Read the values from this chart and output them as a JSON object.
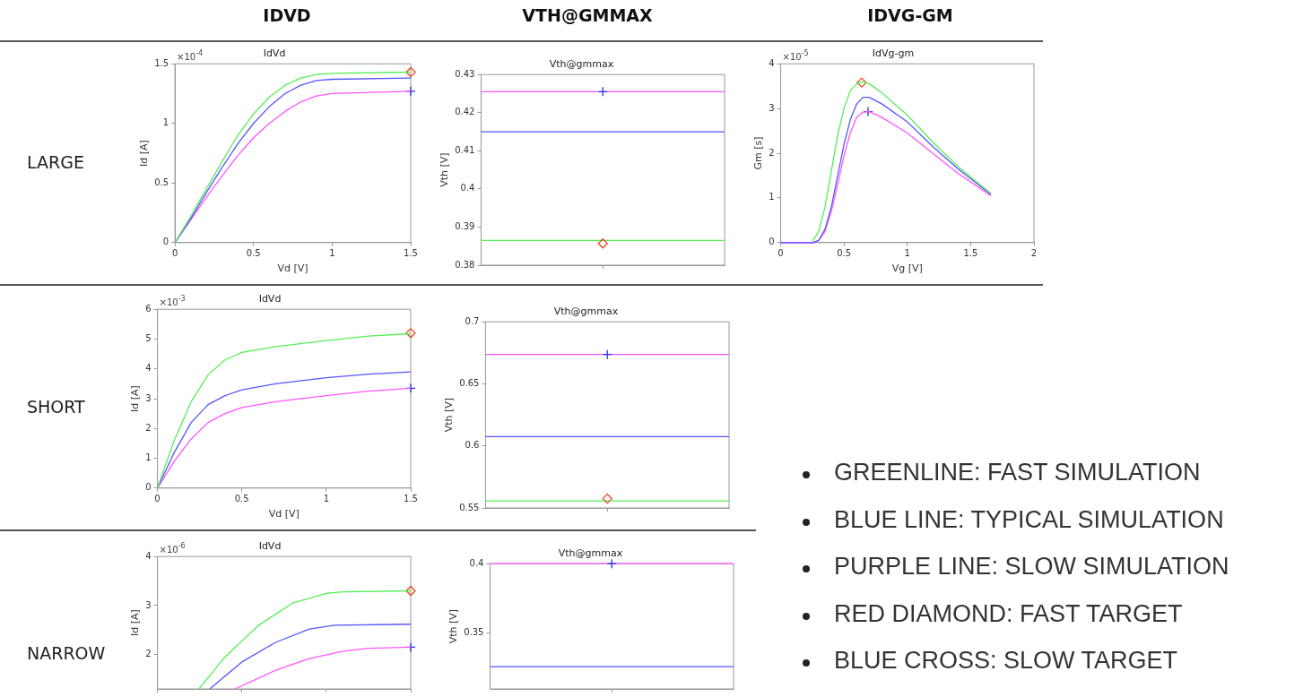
{
  "chart_data": [
    {
      "type": "line",
      "title": "IdVd",
      "xlabel": "Vd [V]",
      "ylabel": "Id [A]",
      "annotations": [
        "×10$^{-4}$"
      ],
      "xlim": [
        0,
        1.5
      ],
      "xticks": [
        0,
        0.5,
        1,
        1.5
      ],
      "ylim": [
        0,
        1.5
      ],
      "yticks": [
        0,
        0.5,
        1,
        1.5
      ],
      "series": [
        {
          "type": "line",
          "color": "#55ee55",
          "marker": "none",
          "x": [
            0,
            0.1,
            0.2,
            0.3,
            0.4,
            0.5,
            0.6,
            0.7,
            0.8,
            0.9,
            1.0,
            1.5
          ],
          "values": [
            0,
            0.22,
            0.45,
            0.68,
            0.9,
            1.08,
            1.22,
            1.32,
            1.38,
            1.41,
            1.42,
            1.43
          ]
        },
        {
          "type": "line",
          "color": "#5555ff",
          "marker": "none",
          "x": [
            0,
            0.1,
            0.2,
            0.3,
            0.4,
            0.5,
            0.6,
            0.7,
            0.8,
            0.9,
            1.0,
            1.5
          ],
          "values": [
            0,
            0.2,
            0.42,
            0.63,
            0.83,
            1.0,
            1.14,
            1.25,
            1.32,
            1.36,
            1.37,
            1.38
          ]
        },
        {
          "type": "line",
          "color": "#ff55ff",
          "marker": "none",
          "x": [
            0,
            0.1,
            0.2,
            0.3,
            0.4,
            0.5,
            0.6,
            0.7,
            0.8,
            0.9,
            1.0,
            1.5
          ],
          "values": [
            0,
            0.19,
            0.38,
            0.56,
            0.73,
            0.88,
            1.0,
            1.1,
            1.18,
            1.23,
            1.25,
            1.27
          ]
        },
        {
          "type": "scatter",
          "color": "#ee4422",
          "marker": "diamond",
          "x": [
            1.5
          ],
          "values": [
            1.43
          ]
        },
        {
          "type": "scatter",
          "color": "#2233dd",
          "marker": "cross",
          "x": [
            1.5
          ],
          "values": [
            1.27
          ]
        }
      ]
    },
    {
      "type": "line",
      "title": "Vth@gmmax",
      "ylabel": "Vth [V]",
      "tick_labels": "y",
      "categories": [
        null
      ],
      "ylim": [
        0.38,
        0.43
      ],
      "yticks": [
        0.38,
        0.39,
        0.4,
        0.41,
        0.42,
        0.43
      ],
      "ref_lines": [
        {
          "axis": "y",
          "value": 0.4255,
          "color": "#ff55ff"
        },
        {
          "axis": "y",
          "value": 0.415,
          "color": "#5555ff"
        },
        {
          "axis": "y",
          "value": 0.3865,
          "color": "#55ee55"
        }
      ],
      "series": [
        {
          "type": "scatter",
          "color": "#ee4422",
          "marker": "diamond",
          "values": [
            0.3857
          ]
        },
        {
          "type": "scatter",
          "color": "#2233dd",
          "marker": "cross",
          "values": [
            0.4255
          ]
        }
      ]
    },
    {
      "type": "line",
      "title": "IdVg-gm",
      "xlabel": "Vg [V]",
      "ylabel": "Gm [s]",
      "annotations": [
        "×10$^{-5}$"
      ],
      "xlim": [
        0,
        2
      ],
      "xticks": [
        0,
        0.5,
        1,
        1.5,
        2
      ],
      "ylim": [
        0,
        4
      ],
      "yticks": [
        0,
        1,
        2,
        3,
        4
      ],
      "series": [
        {
          "type": "line",
          "color": "#55ee55",
          "marker": "none",
          "x": [
            0.25,
            0.3,
            0.35,
            0.4,
            0.45,
            0.5,
            0.55,
            0.6,
            0.65,
            0.7,
            0.8,
            1.0,
            1.2,
            1.4,
            1.66
          ],
          "values": [
            0.03,
            0.25,
            0.8,
            1.6,
            2.4,
            3.0,
            3.4,
            3.55,
            3.6,
            3.55,
            3.35,
            2.85,
            2.25,
            1.7,
            1.1
          ]
        },
        {
          "type": "line",
          "color": "#5555ff",
          "marker": "none",
          "x": [
            0,
            0.25,
            0.3,
            0.35,
            0.4,
            0.45,
            0.5,
            0.55,
            0.6,
            0.65,
            0.7,
            0.8,
            1.0,
            1.2,
            1.4,
            1.66
          ],
          "values": [
            0,
            0,
            0.05,
            0.3,
            0.8,
            1.5,
            2.2,
            2.75,
            3.1,
            3.25,
            3.25,
            3.1,
            2.7,
            2.15,
            1.65,
            1.08
          ]
        },
        {
          "type": "line",
          "color": "#ff55ff",
          "marker": "none",
          "x": [
            0,
            0.27,
            0.3,
            0.35,
            0.4,
            0.45,
            0.5,
            0.55,
            0.6,
            0.65,
            0.7,
            0.8,
            1.0,
            1.2,
            1.4,
            1.66
          ],
          "values": [
            0,
            0,
            0.05,
            0.25,
            0.7,
            1.3,
            1.95,
            2.45,
            2.8,
            2.92,
            2.93,
            2.8,
            2.45,
            2.0,
            1.55,
            1.05
          ]
        },
        {
          "type": "scatter",
          "color": "#ee4422",
          "marker": "diamond",
          "x": [
            0.64
          ],
          "values": [
            3.58
          ]
        },
        {
          "type": "scatter",
          "color": "#2233dd",
          "marker": "cross",
          "x": [
            0.69
          ],
          "values": [
            2.93
          ]
        }
      ]
    },
    {
      "type": "line",
      "title": "IdVd",
      "xlabel": "Vd [V]",
      "ylabel": "Id [A]",
      "annotations": [
        "×10$^{-3}$"
      ],
      "xlim": [
        0,
        1.5
      ],
      "xticks": [
        0,
        0.5,
        1,
        1.5
      ],
      "ylim": [
        0,
        6
      ],
      "yticks": [
        0,
        1,
        2,
        3,
        4,
        5,
        6
      ],
      "series": [
        {
          "type": "line",
          "color": "#55ee55",
          "marker": "none",
          "x": [
            0,
            0.1,
            0.2,
            0.3,
            0.4,
            0.5,
            0.7,
            1.0,
            1.25,
            1.5
          ],
          "values": [
            0,
            1.6,
            2.9,
            3.8,
            4.3,
            4.55,
            4.75,
            4.95,
            5.1,
            5.18
          ]
        },
        {
          "type": "line",
          "color": "#5555ff",
          "marker": "none",
          "x": [
            0,
            0.1,
            0.2,
            0.3,
            0.4,
            0.5,
            0.7,
            1.0,
            1.25,
            1.5
          ],
          "values": [
            0,
            1.2,
            2.2,
            2.8,
            3.1,
            3.3,
            3.5,
            3.7,
            3.82,
            3.9
          ]
        },
        {
          "type": "line",
          "color": "#ff55ff",
          "marker": "none",
          "x": [
            0,
            0.1,
            0.2,
            0.3,
            0.4,
            0.5,
            0.7,
            1.0,
            1.25,
            1.5
          ],
          "values": [
            0,
            0.9,
            1.65,
            2.2,
            2.5,
            2.7,
            2.9,
            3.1,
            3.25,
            3.35
          ]
        },
        {
          "type": "scatter",
          "color": "#ee4422",
          "marker": "diamond",
          "x": [
            1.5
          ],
          "values": [
            5.2
          ]
        },
        {
          "type": "scatter",
          "color": "#2233dd",
          "marker": "cross",
          "x": [
            1.5
          ],
          "values": [
            3.35
          ]
        }
      ]
    },
    {
      "type": "line",
      "title": "Vth@gmmax",
      "ylabel": "Vth [V]",
      "tick_labels": "y",
      "categories": [
        null
      ],
      "ylim": [
        0.55,
        0.7
      ],
      "yticks": [
        0.55,
        0.6,
        0.65,
        0.7
      ],
      "ref_lines": [
        {
          "axis": "y",
          "value": 0.6737,
          "color": "#ff55ff"
        },
        {
          "axis": "y",
          "value": 0.6075,
          "color": "#5555ff"
        },
        {
          "axis": "y",
          "value": 0.5557,
          "color": "#55ee55"
        }
      ],
      "series": [
        {
          "type": "scatter",
          "color": "#ee4422",
          "marker": "diamond",
          "values": [
            0.5575
          ]
        },
        {
          "type": "scatter",
          "color": "#2233dd",
          "marker": "cross",
          "values": [
            0.6737
          ]
        }
      ]
    },
    {
      "type": "line",
      "title": "IdVd",
      "ylabel": "Id [A]",
      "annotations": [
        "×10$^{-6}$"
      ],
      "tick_labels": "y",
      "xlim": [
        0,
        1.5
      ],
      "xticks": [
        {
          "value": 0,
          "label": null
        },
        {
          "value": 0.5,
          "label": null
        },
        {
          "value": 1,
          "label": null
        },
        {
          "value": 1.5,
          "label": null
        }
      ],
      "ylim": [
        1.3,
        4
      ],
      "yticks": [
        2,
        3,
        4
      ],
      "series": [
        {
          "type": "line",
          "color": "#55ee55",
          "marker": "none",
          "x": [
            0.245,
            0.4,
            0.6,
            0.8,
            1.0,
            1.1,
            1.5
          ],
          "values": [
            1.3,
            1.95,
            2.6,
            3.05,
            3.25,
            3.28,
            3.3
          ]
        },
        {
          "type": "line",
          "color": "#5555ff",
          "marker": "none",
          "x": [
            0.31,
            0.5,
            0.7,
            0.9,
            1.05,
            1.5
          ],
          "values": [
            1.3,
            1.85,
            2.25,
            2.52,
            2.6,
            2.62
          ]
        },
        {
          "type": "line",
          "color": "#ff55ff",
          "marker": "none",
          "x": [
            0.46,
            0.7,
            0.9,
            1.1,
            1.25,
            1.5
          ],
          "values": [
            1.3,
            1.68,
            1.92,
            2.07,
            2.13,
            2.15
          ]
        },
        {
          "type": "scatter",
          "color": "#ee4422",
          "marker": "diamond",
          "x": [
            1.5
          ],
          "values": [
            3.3
          ]
        },
        {
          "type": "scatter",
          "color": "#2233dd",
          "marker": "cross",
          "x": [
            1.5
          ],
          "values": [
            2.15
          ]
        }
      ]
    },
    {
      "type": "line",
      "title": "Vth@gmmax",
      "ylabel": "Vth [V]",
      "tick_labels": "y",
      "categories": [
        null
      ],
      "ylim": [
        0.31,
        0.4
      ],
      "yticks": [
        0.35,
        0.4
      ],
      "ref_lines": [
        {
          "axis": "y",
          "value": 0.4,
          "color": "#ff55ff"
        },
        {
          "axis": "y",
          "value": 0.326,
          "color": "#5555ff"
        }
      ],
      "series": [
        {
          "type": "scatter",
          "color": "#2233dd",
          "marker": "cross",
          "values": [
            0.4
          ]
        }
      ]
    },
    {
      "type": "other",
      "annotations": [
        "IDVD",
        "VTH@GMMAX",
        "IDVG-GM",
        "LARGE",
        "SHORT",
        "NARROW",
        "GREENLINE: FAST SIMULATION",
        "BLUE LINE: TYPICAL SIMULATION",
        "PURPLE LINE: SLOW SIMULATION",
        "RED DIAMOND: FAST TARGET",
        "BLUE CROSS: SLOW TARGET"
      ]
    }
  ]
}
